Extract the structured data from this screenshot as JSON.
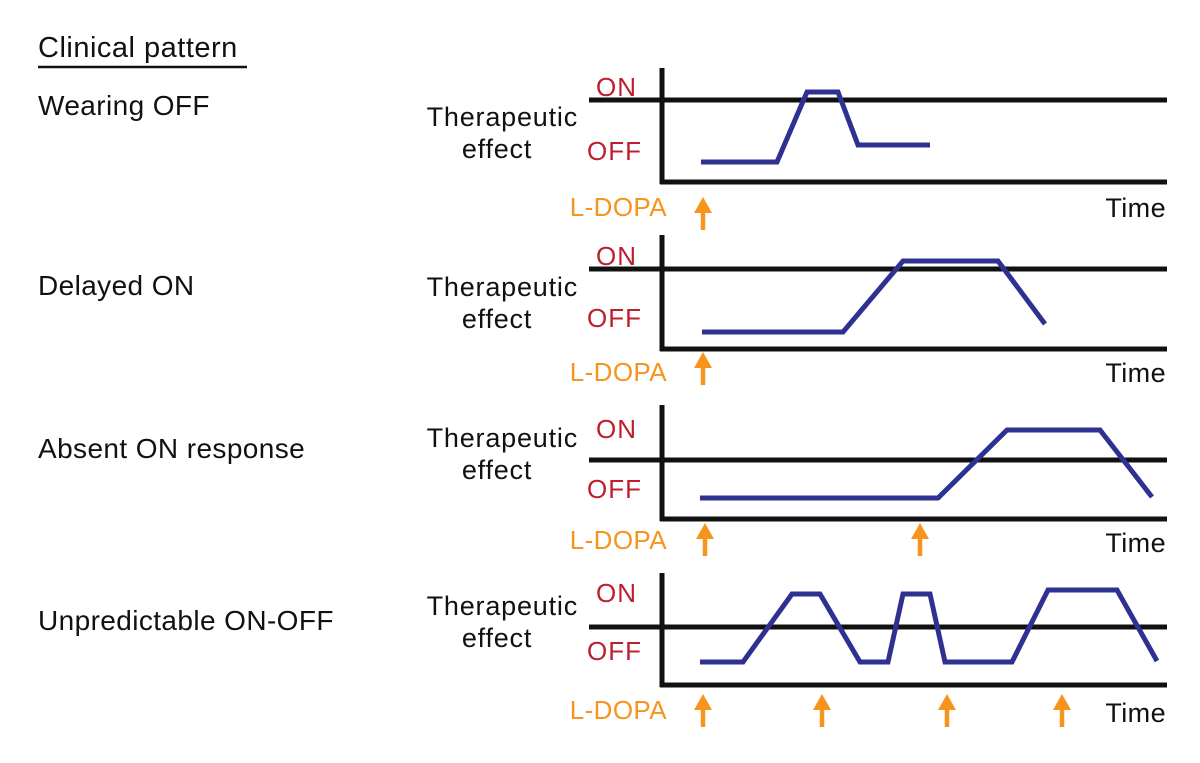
{
  "title": "Clinical pattern",
  "colors": {
    "curve": "#2e3192",
    "threshold_labels": "#be1e2d",
    "ldopa": "#f7941e",
    "axis": "#111111"
  },
  "rows": [
    {
      "label": "Wearing OFF",
      "y_axis_label_line1": "Therapeutic",
      "y_axis_label_line2": "effect",
      "on_label": "ON",
      "off_label": "OFF",
      "ldopa_label": "L-DOPA",
      "time_label": "Time",
      "curve_points": [
        [
          701,
          162
        ],
        [
          777,
          162
        ],
        [
          807,
          92
        ],
        [
          838,
          92
        ],
        [
          858,
          145
        ],
        [
          930,
          145
        ]
      ],
      "dose_arrow_x": [
        703
      ]
    },
    {
      "label": "Delayed ON",
      "y_axis_label_line1": "Therapeutic",
      "y_axis_label_line2": "effect",
      "on_label": "ON",
      "off_label": "OFF",
      "ldopa_label": "L-DOPA",
      "time_label": "Time",
      "curve_points": [
        [
          702,
          332
        ],
        [
          843,
          332
        ],
        [
          903,
          261
        ],
        [
          998,
          261
        ],
        [
          1045,
          324
        ]
      ],
      "dose_arrow_x": [
        703
      ]
    },
    {
      "label": "Absent ON response",
      "y_axis_label_line1": "Therapeutic",
      "y_axis_label_line2": "effect",
      "on_label": "ON",
      "off_label": "OFF",
      "ldopa_label": "L-DOPA",
      "time_label": "Time",
      "curve_points": [
        [
          700,
          498
        ],
        [
          938,
          498
        ],
        [
          1007,
          430
        ],
        [
          1100,
          430
        ],
        [
          1152,
          497
        ]
      ],
      "dose_arrow_x": [
        705,
        920
      ]
    },
    {
      "label": "Unpredictable ON-OFF",
      "y_axis_label_line1": "Therapeutic",
      "y_axis_label_line2": "effect",
      "on_label": "ON",
      "off_label": "OFF",
      "ldopa_label": "L-DOPA",
      "time_label": "Time",
      "curve_points": [
        [
          700,
          662
        ],
        [
          743,
          662
        ],
        [
          792,
          594
        ],
        [
          820,
          594
        ],
        [
          860,
          662
        ],
        [
          888,
          662
        ],
        [
          903,
          594
        ],
        [
          930,
          594
        ],
        [
          945,
          662
        ],
        [
          1012,
          662
        ],
        [
          1048,
          590
        ],
        [
          1117,
          590
        ],
        [
          1157,
          661
        ]
      ],
      "dose_arrow_x": [
        703,
        822,
        947,
        1062
      ]
    }
  ]
}
